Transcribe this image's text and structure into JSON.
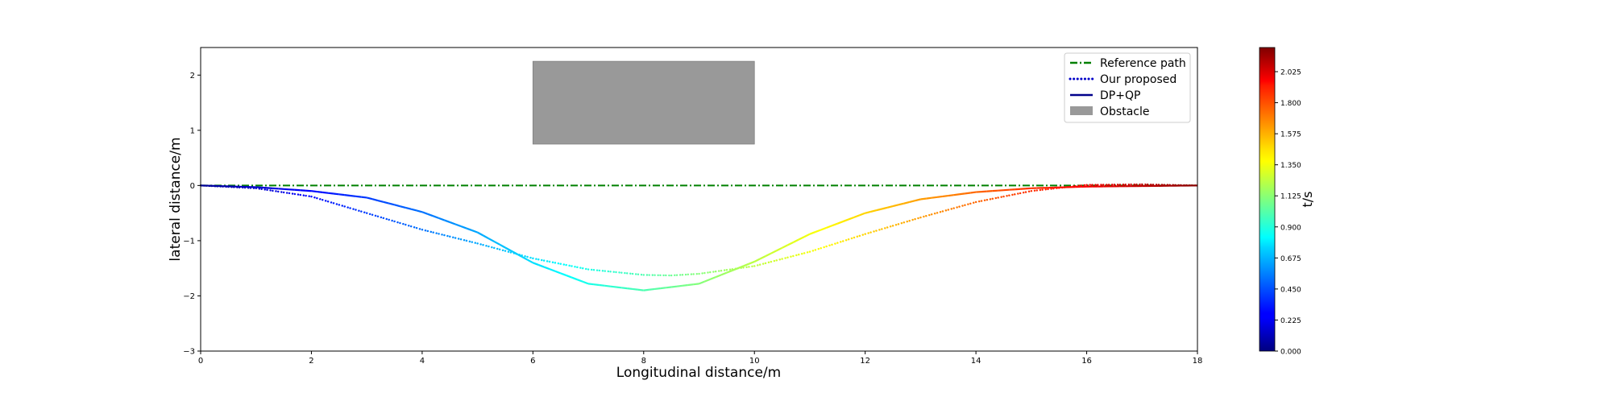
{
  "chart_data": {
    "type": "line",
    "xlabel": "Longitudinal distance/m",
    "ylabel": "lateral distance/m",
    "xlim": [
      0,
      18
    ],
    "ylim": [
      -3,
      2.5
    ],
    "xticks": [
      "0",
      "2",
      "4",
      "6",
      "8",
      "10",
      "12",
      "14",
      "16",
      "18"
    ],
    "yticks": [
      "2",
      "1",
      "0",
      "−1",
      "−2",
      "−3"
    ],
    "grid": false,
    "legend_position": "top-right",
    "series": [
      {
        "name": "Reference path",
        "style": "dash-dot",
        "color": "#008000",
        "x": [
          0,
          18
        ],
        "y": [
          0,
          0
        ]
      },
      {
        "name": "Our proposed",
        "style": "dotted",
        "color_by_time": true,
        "x": [
          0,
          1,
          2,
          3,
          4,
          5,
          6,
          7,
          8,
          8.5,
          9,
          10,
          11,
          12,
          13,
          14,
          15,
          16,
          17,
          18
        ],
        "y": [
          0,
          -0.05,
          -0.2,
          -0.5,
          -0.8,
          -1.05,
          -1.32,
          -1.52,
          -1.62,
          -1.63,
          -1.6,
          -1.46,
          -1.2,
          -0.88,
          -0.58,
          -0.3,
          -0.1,
          0.01,
          0.02,
          0
        ]
      },
      {
        "name": "DP+QP",
        "style": "solid",
        "color_by_time": true,
        "x": [
          0,
          1,
          2,
          3,
          4,
          5,
          6,
          7,
          8,
          9,
          10,
          11,
          12,
          13,
          14,
          15,
          16,
          17,
          18
        ],
        "y": [
          0,
          -0.03,
          -0.1,
          -0.22,
          -0.48,
          -0.85,
          -1.4,
          -1.78,
          -1.9,
          -1.78,
          -1.38,
          -0.88,
          -0.5,
          -0.25,
          -0.12,
          -0.05,
          -0.02,
          -0.01,
          0
        ]
      }
    ],
    "obstacle": {
      "name": "Obstacle",
      "color": "#999999",
      "x_range": [
        6,
        10
      ],
      "y_range": [
        0.75,
        2.25
      ]
    },
    "colorbar": {
      "label": "t/s",
      "colormap": "jet",
      "range": [
        0,
        2.2
      ],
      "ticks": [
        "0.000",
        "0.225",
        "0.450",
        "0.675",
        "0.900",
        "1.125",
        "1.350",
        "1.575",
        "1.800",
        "2.025"
      ]
    }
  }
}
